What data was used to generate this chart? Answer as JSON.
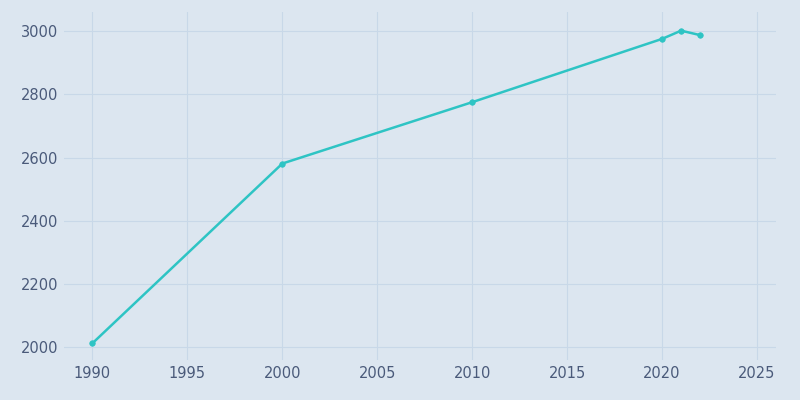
{
  "years": [
    1990,
    2000,
    2010,
    2020,
    2021,
    2022
  ],
  "population": [
    2013,
    2581,
    2775,
    2975,
    3001,
    2987
  ],
  "line_color": "#2ec4c4",
  "marker": "o",
  "marker_size": 4,
  "linewidth": 1.8,
  "bg_color": "#dce6f0",
  "plot_bg_color": "#dce6f0",
  "xlim": [
    1988.5,
    2026
  ],
  "ylim": [
    1960,
    3060
  ],
  "xticks": [
    1990,
    1995,
    2000,
    2005,
    2010,
    2015,
    2020,
    2025
  ],
  "yticks": [
    2000,
    2200,
    2400,
    2600,
    2800,
    3000
  ],
  "grid_color": "#c8d8e8",
  "grid_linewidth": 0.8,
  "tick_color": "#4a5a7a",
  "tick_fontsize": 10.5
}
